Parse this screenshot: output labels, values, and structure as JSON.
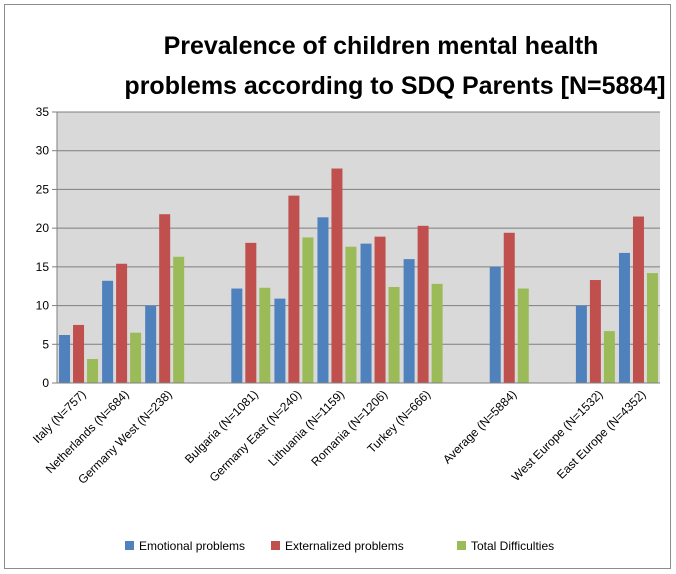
{
  "chart_data": {
    "type": "bar",
    "title_lines": [
      "Prevalence of children mental health",
      "problems according to SDQ  Parents [N=5884]"
    ],
    "categories": [
      "Italy (N=757)",
      "Netherlands (N=684)",
      "Germany West (N=238)",
      "",
      "Bulgaria (N=1081)",
      "Germany East (N=240)",
      "Lithuania (N=1159)",
      "Romania (N=1206)",
      "Turkey (N=666)",
      "",
      "Average (N=5884)",
      "",
      "West Europe (N=1532)",
      "East Europe (N=4352)"
    ],
    "series": [
      {
        "name": "Emotional problems",
        "color": "#4f81bd",
        "values": [
          6.2,
          13.2,
          10.0,
          null,
          12.2,
          10.9,
          21.4,
          18.0,
          16.0,
          null,
          15.0,
          null,
          10.0,
          16.8
        ]
      },
      {
        "name": "Externalized problems",
        "color": "#c0504d",
        "values": [
          7.5,
          15.4,
          21.8,
          null,
          18.1,
          24.2,
          27.7,
          18.9,
          20.3,
          null,
          19.4,
          null,
          13.3,
          21.5
        ]
      },
      {
        "name": "Total Difficulties",
        "color": "#9bbb59",
        "values": [
          3.1,
          6.5,
          16.3,
          null,
          12.3,
          18.8,
          17.6,
          12.4,
          12.8,
          null,
          12.2,
          null,
          6.7,
          14.2
        ]
      }
    ],
    "ylim": [
      0,
      35
    ],
    "yticks": [
      0,
      5,
      10,
      15,
      20,
      25,
      30,
      35
    ],
    "grid": true,
    "legend_position": "bottom",
    "plot_background": "#d9d9d9"
  }
}
